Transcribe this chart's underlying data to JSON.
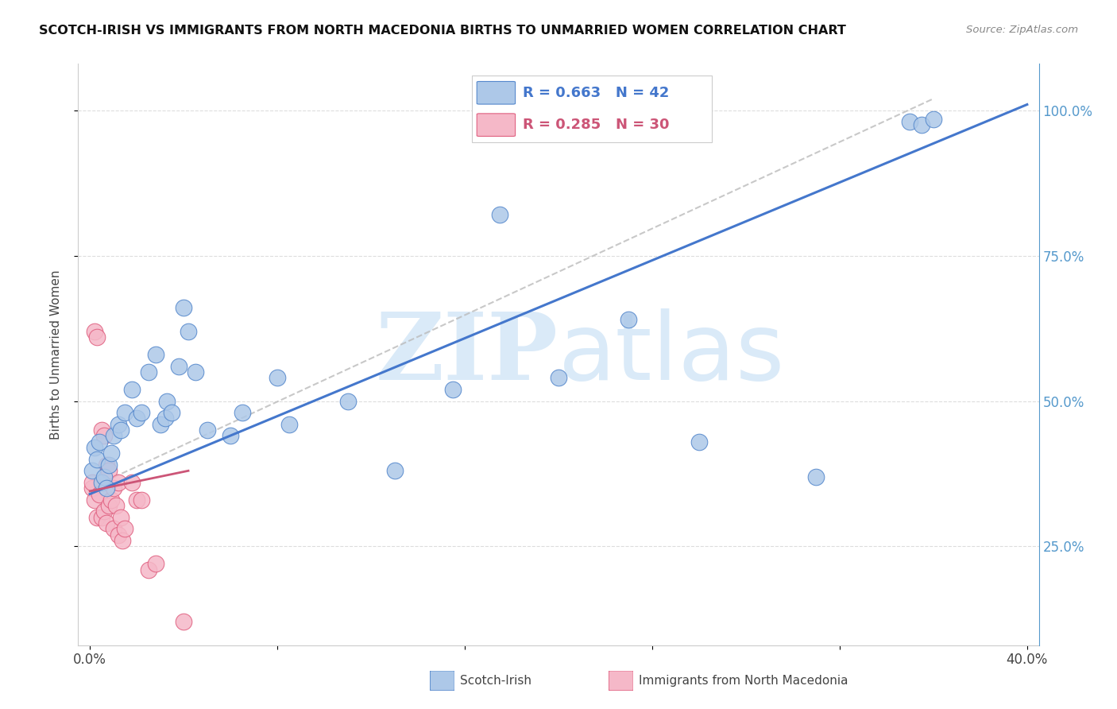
{
  "title": "SCOTCH-IRISH VS IMMIGRANTS FROM NORTH MACEDONIA BIRTHS TO UNMARRIED WOMEN CORRELATION CHART",
  "source": "Source: ZipAtlas.com",
  "ylabel": "Births to Unmarried Women",
  "xlabel_blue": "Scotch-Irish",
  "xlabel_pink": "Immigrants from North Macedonia",
  "R_blue": 0.663,
  "N_blue": 42,
  "R_pink": 0.285,
  "N_pink": 30,
  "xlim": [
    -0.005,
    0.405
  ],
  "ylim": [
    0.08,
    1.08
  ],
  "blue_color": "#adc8e8",
  "blue_edge": "#5588cc",
  "pink_color": "#f5b8c8",
  "pink_edge": "#e06080",
  "line_blue": "#4477cc",
  "line_pink": "#cc5577",
  "line_gray": "#bbbbbb",
  "watermark_color": "#daeaf8",
  "background": "#ffffff",
  "grid_color": "#dddddd",
  "right_tick_color": "#5599cc",
  "blue_x": [
    0.001,
    0.002,
    0.003,
    0.004,
    0.005,
    0.006,
    0.007,
    0.008,
    0.009,
    0.01,
    0.012,
    0.013,
    0.015,
    0.018,
    0.02,
    0.022,
    0.025,
    0.028,
    0.03,
    0.032,
    0.033,
    0.035,
    0.038,
    0.04,
    0.042,
    0.045,
    0.05,
    0.06,
    0.065,
    0.08,
    0.085,
    0.11,
    0.13,
    0.155,
    0.175,
    0.2,
    0.23,
    0.26,
    0.31,
    0.35,
    0.355,
    0.36
  ],
  "blue_y": [
    0.38,
    0.42,
    0.4,
    0.43,
    0.36,
    0.37,
    0.35,
    0.39,
    0.41,
    0.44,
    0.46,
    0.45,
    0.48,
    0.52,
    0.47,
    0.48,
    0.55,
    0.58,
    0.46,
    0.47,
    0.5,
    0.48,
    0.56,
    0.66,
    0.62,
    0.55,
    0.45,
    0.44,
    0.48,
    0.54,
    0.46,
    0.5,
    0.38,
    0.52,
    0.82,
    0.54,
    0.64,
    0.43,
    0.37,
    0.98,
    0.975,
    0.985
  ],
  "pink_x": [
    0.001,
    0.001,
    0.002,
    0.002,
    0.003,
    0.003,
    0.004,
    0.005,
    0.005,
    0.006,
    0.006,
    0.007,
    0.007,
    0.008,
    0.008,
    0.009,
    0.01,
    0.01,
    0.011,
    0.012,
    0.012,
    0.013,
    0.014,
    0.015,
    0.018,
    0.02,
    0.022,
    0.025,
    0.028,
    0.04
  ],
  "pink_y": [
    0.35,
    0.36,
    0.33,
    0.62,
    0.3,
    0.61,
    0.34,
    0.3,
    0.45,
    0.31,
    0.44,
    0.29,
    0.39,
    0.32,
    0.38,
    0.33,
    0.28,
    0.35,
    0.32,
    0.27,
    0.36,
    0.3,
    0.26,
    0.28,
    0.36,
    0.33,
    0.33,
    0.21,
    0.22,
    0.12
  ],
  "blue_reg": [
    0.34,
    1.01
  ],
  "pink_reg": [
    0.345,
    0.38
  ],
  "gray_line": [
    [
      0.0,
      0.36
    ],
    [
      0.35,
      1.02
    ]
  ]
}
